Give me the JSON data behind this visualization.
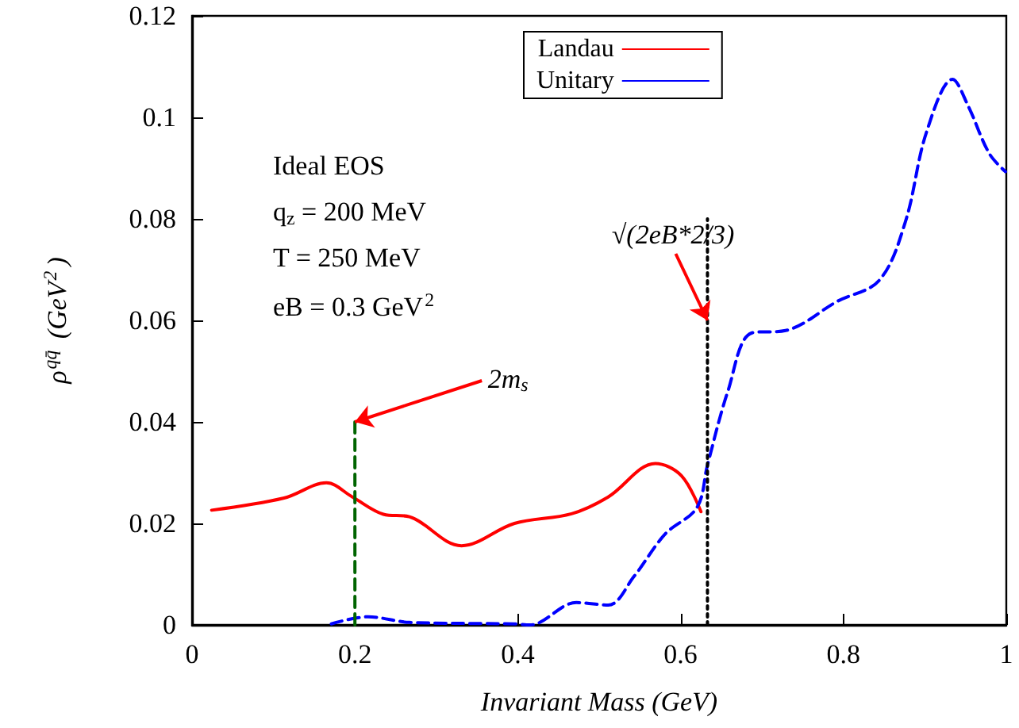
{
  "chart_data": {
    "type": "line",
    "xlabel": "Invariant Mass (GeV)",
    "ylabel": "ρ$^{qq̄}$ (GeV$^{2}$)",
    "xlim": [
      0,
      1
    ],
    "xticks": [
      0,
      0.2,
      0.4,
      0.6,
      0.8,
      1
    ],
    "ylim": [
      0,
      0.12
    ],
    "yticks": [
      0,
      0.02,
      0.04,
      0.06,
      0.08,
      0.1,
      0.12
    ],
    "grid": false,
    "legend": "top",
    "marker": "none",
    "series": [
      {
        "name": "Landau",
        "color": "#ff0000",
        "line_style": "solid",
        "x": [
          0.024,
          0.113,
          0.165,
          0.197,
          0.235,
          0.267,
          0.331,
          0.396,
          0.466,
          0.511,
          0.569,
          0.601,
          0.625
        ],
        "values": [
          0.0226,
          0.025,
          0.028,
          0.0252,
          0.0218,
          0.0213,
          0.0156,
          0.02,
          0.0219,
          0.0252,
          0.0318,
          0.0294,
          0.0223
        ]
      },
      {
        "name": "Unitary",
        "color": "#0000ff",
        "line_style": "dashed",
        "x": [
          0.171,
          0.216,
          0.267,
          0.396,
          0.415,
          0.472,
          0.511,
          0.543,
          0.581,
          0.62,
          0.633,
          0.658,
          0.687,
          0.729,
          0.793,
          0.844,
          0.876,
          0.902,
          0.934,
          0.953,
          0.979,
          0.999
        ],
        "values": [
          0.0002,
          0.0016,
          0.0005,
          0.0002,
          0,
          0.0044,
          0.0039,
          0.0096,
          0.0179,
          0.0231,
          0.0315,
          0.046,
          0.0575,
          0.058,
          0.0638,
          0.0679,
          0.0794,
          0.0971,
          0.1075,
          0.1023,
          0.0929,
          0.0893
        ]
      },
      {
        "color": "#006400",
        "line_style": "dashed",
        "x": [
          0.2,
          0.2
        ],
        "values": [
          0,
          0.04
        ]
      },
      {
        "color": "#000000",
        "line_style": "dotted",
        "x": [
          0.633,
          0.633
        ],
        "values": [
          0,
          0.08
        ]
      }
    ],
    "annotations": [
      "Ideal EOS",
      "q$_{z}$ = 200 MeV",
      "T = 250 MeV",
      "eB = 0.3 GeV$^{2}$",
      {
        "text": "2m$_{s}$",
        "x": 0.2,
        "y": 0.04
      },
      {
        "text": "√(2eB*2/3)",
        "x": 0.633,
        "y": 0.06
      }
    ]
  }
}
